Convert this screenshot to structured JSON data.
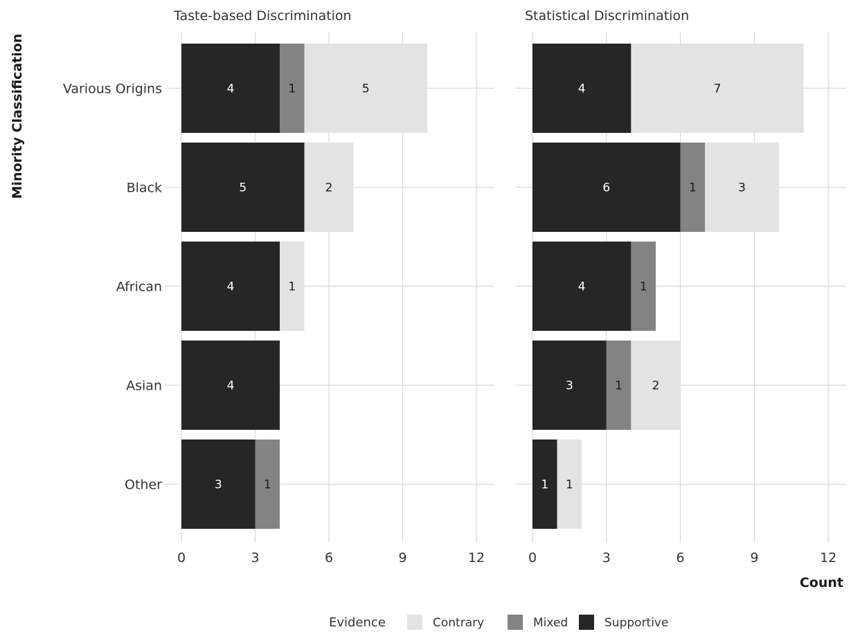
{
  "chart_data": {
    "type": "bar",
    "orientation": "horizontal",
    "stacked": true,
    "x_title": "Count",
    "y_title": "Minority Classification",
    "categories": [
      "Various Origins",
      "Black",
      "African",
      "Asian",
      "Other"
    ],
    "xlim": [
      0,
      12.6
    ],
    "x_ticks": [
      0,
      3,
      6,
      9,
      12
    ],
    "grid": true,
    "legend": {
      "title": "Evidence",
      "position": "bottom",
      "items": [
        {
          "name": "Contrary",
          "color": "#e3e3e3"
        },
        {
          "name": "Mixed",
          "color": "#838383"
        },
        {
          "name": "Supportive",
          "color": "#262626"
        }
      ]
    },
    "stack_order": [
      "Supportive",
      "Mixed",
      "Contrary"
    ],
    "colors": {
      "Supportive": "#262626",
      "Mixed": "#838383",
      "Contrary": "#e3e3e3"
    },
    "label_colors": {
      "Supportive": "#ffffff",
      "Mixed": "#1a1a1a",
      "Contrary": "#1a1a1a"
    },
    "facets": [
      {
        "title": "Taste-based Discrimination",
        "series": [
          {
            "name": "Supportive",
            "values": [
              4,
              5,
              4,
              4,
              3
            ]
          },
          {
            "name": "Mixed",
            "values": [
              1,
              0,
              0,
              0,
              1
            ]
          },
          {
            "name": "Contrary",
            "values": [
              5,
              2,
              1,
              0,
              0
            ]
          }
        ]
      },
      {
        "title": "Statistical Discrimination",
        "series": [
          {
            "name": "Supportive",
            "values": [
              4,
              6,
              4,
              3,
              1
            ]
          },
          {
            "name": "Mixed",
            "values": [
              0,
              1,
              1,
              1,
              0
            ]
          },
          {
            "name": "Contrary",
            "values": [
              7,
              3,
              0,
              2,
              1
            ]
          }
        ]
      }
    ]
  }
}
